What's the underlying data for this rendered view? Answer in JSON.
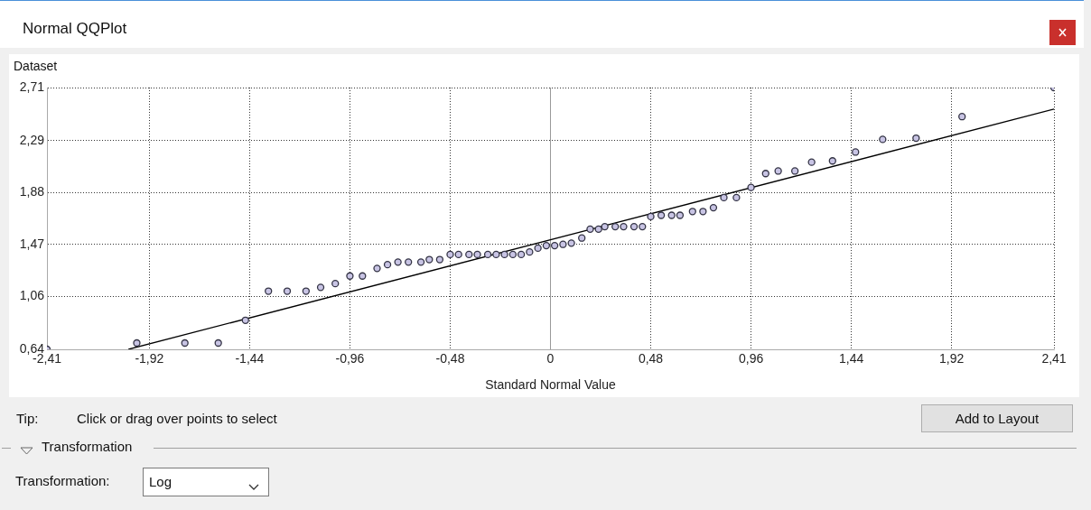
{
  "chart_data": {
    "type": "scatter",
    "title": "Normal QQPlot",
    "xlabel": "Standard Normal Value",
    "ylabel": "Dataset",
    "grid": true,
    "xlim": [
      -2.41,
      2.41
    ],
    "ylim": [
      0.64,
      2.71
    ],
    "xticks": [
      {
        "value": -2.41,
        "label": "-2,41"
      },
      {
        "value": -1.92,
        "label": "-1,92"
      },
      {
        "value": -1.44,
        "label": "-1,44"
      },
      {
        "value": -0.96,
        "label": "-0,96"
      },
      {
        "value": -0.48,
        "label": "-0,48"
      },
      0,
      {
        "value": 0.48,
        "label": "0,48"
      },
      {
        "value": 0.96,
        "label": "0,96"
      },
      {
        "value": 1.44,
        "label": "1,44"
      },
      {
        "value": 1.92,
        "label": "1,92"
      },
      {
        "value": 2.41,
        "label": "2,41"
      }
    ],
    "yticks": [
      {
        "value": 0.64,
        "label": "0,64"
      },
      {
        "value": 1.06,
        "label": "1,06"
      },
      {
        "value": 1.47,
        "label": "1,47"
      },
      {
        "value": 1.88,
        "label": "1,88"
      },
      {
        "value": 2.29,
        "label": "2,29"
      },
      {
        "value": 2.71,
        "label": "2,71"
      }
    ],
    "series": [
      {
        "type": "scatter",
        "marker": "circle",
        "color": "#c8c4e4",
        "x": [
          -2.41,
          -1.98,
          -1.75,
          -1.59,
          -1.46,
          -1.35,
          -1.26,
          -1.17,
          -1.1,
          -1.03,
          -0.96,
          -0.9,
          -0.83,
          -0.78,
          -0.73,
          -0.68,
          -0.62,
          -0.58,
          -0.53,
          -0.48,
          -0.44,
          -0.39,
          -0.35,
          -0.3,
          -0.26,
          -0.22,
          -0.18,
          -0.14,
          -0.1,
          -0.06,
          -0.02,
          0.02,
          0.06,
          0.1,
          0.15,
          0.19,
          0.23,
          0.26,
          0.31,
          0.35,
          0.4,
          0.44,
          0.48,
          0.53,
          0.58,
          0.62,
          0.68,
          0.73,
          0.78,
          0.83,
          0.89,
          0.96,
          1.03,
          1.09,
          1.17,
          1.25,
          1.35,
          1.46,
          1.59,
          1.75,
          1.97,
          2.41
        ],
        "values": [
          0.64,
          0.69,
          0.69,
          0.69,
          0.87,
          1.1,
          1.1,
          1.1,
          1.13,
          1.16,
          1.22,
          1.22,
          1.28,
          1.31,
          1.33,
          1.33,
          1.33,
          1.35,
          1.35,
          1.39,
          1.39,
          1.39,
          1.39,
          1.39,
          1.39,
          1.39,
          1.39,
          1.39,
          1.41,
          1.44,
          1.46,
          1.46,
          1.47,
          1.48,
          1.52,
          1.59,
          1.59,
          1.61,
          1.61,
          1.61,
          1.61,
          1.61,
          1.69,
          1.7,
          1.7,
          1.7,
          1.73,
          1.73,
          1.76,
          1.84,
          1.84,
          1.92,
          2.03,
          2.05,
          2.05,
          2.12,
          2.13,
          2.2,
          2.3,
          2.31,
          2.48,
          2.71
        ]
      },
      {
        "type": "line",
        "marker": "none",
        "color": "#000000",
        "x": [
          -2.02,
          2.41
        ],
        "values": [
          0.64,
          2.54
        ]
      }
    ],
    "annotations": [
      "Tip:",
      "Click or drag over points to select",
      "Add to Layout",
      "Transformation",
      "Transformation:",
      "Log"
    ]
  }
}
